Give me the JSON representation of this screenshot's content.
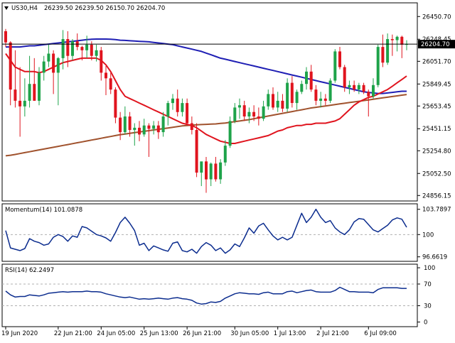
{
  "header": {
    "symbol": "US30,H4",
    "ohlc": "26239.50 26239.50 26150.70 26204.70"
  },
  "colors": {
    "bull": "#1ea34a",
    "bear": "#e0141e",
    "ma_fast": "#e0141e",
    "ma_mid": "#1f1fb4",
    "ma_slow": "#a0522d",
    "osc_line": "#0b2c8e",
    "grid": "#b0b0b0",
    "price_tag_bg": "#000000",
    "price_tag_fg": "#ffffff"
  },
  "chart_data": [
    {
      "type": "candlestick",
      "name": "US30,H4",
      "current_price": "26204.70",
      "y_ticks": [
        "26450.70",
        "26248.45",
        "26051.70",
        "25849.45",
        "25653.45",
        "25451.15",
        "25254.80",
        "25052.50",
        "24856.15"
      ],
      "y_tick_values": [
        26450.7,
        26248.45,
        26051.7,
        25849.45,
        25653.45,
        25451.15,
        25254.8,
        25052.5,
        24856.15
      ],
      "ylim": [
        24820,
        26560
      ],
      "candles": [
        [
          26320,
          26340,
          26180,
          26220
        ],
        [
          26220,
          26230,
          25660,
          25800
        ],
        [
          25800,
          26150,
          25640,
          25700
        ],
        [
          25700,
          26000,
          25380,
          25650
        ],
        [
          25650,
          25900,
          25560,
          25700
        ],
        [
          25700,
          26100,
          25640,
          25850
        ],
        [
          25850,
          26080,
          25700,
          25700
        ],
        [
          25700,
          26000,
          25660,
          25950
        ],
        [
          25950,
          26100,
          25880,
          26050
        ],
        [
          26050,
          26200,
          26000,
          26120
        ],
        [
          26120,
          26150,
          25760,
          25950
        ],
        [
          25950,
          26090,
          25660,
          26080
        ],
        [
          26080,
          26330,
          25980,
          26250
        ],
        [
          26250,
          26320,
          26000,
          26100
        ],
        [
          26100,
          26250,
          26060,
          26230
        ],
        [
          26230,
          26300,
          26150,
          26180
        ],
        [
          26180,
          26190,
          26060,
          26150
        ],
        [
          26150,
          26280,
          26080,
          26200
        ],
        [
          26200,
          26230,
          26060,
          26100
        ],
        [
          26100,
          26200,
          26050,
          26150
        ],
        [
          26150,
          26180,
          25880,
          25950
        ],
        [
          25950,
          26010,
          25750,
          25900
        ],
        [
          25900,
          25950,
          25760,
          25800
        ],
        [
          25800,
          25820,
          25500,
          25550
        ],
        [
          25550,
          25600,
          25350,
          25420
        ],
        [
          25420,
          25650,
          25400,
          25560
        ],
        [
          25560,
          25600,
          25380,
          25440
        ],
        [
          25440,
          25500,
          25300,
          25460
        ],
        [
          25460,
          25520,
          25340,
          25400
        ],
        [
          25400,
          25540,
          25380,
          25480
        ],
        [
          25480,
          25500,
          25200,
          25450
        ],
        [
          25450,
          25520,
          25400,
          25480
        ],
        [
          25480,
          25520,
          25360,
          25420
        ],
        [
          25420,
          25600,
          25380,
          25560
        ],
        [
          25560,
          25700,
          25480,
          25680
        ],
        [
          25680,
          25760,
          25620,
          25720
        ],
        [
          25720,
          25800,
          25560,
          25600
        ],
        [
          25600,
          25720,
          25560,
          25680
        ],
        [
          25680,
          25720,
          25480,
          25500
        ],
        [
          25500,
          25560,
          25400,
          25440
        ],
        [
          25440,
          25500,
          25020,
          25060
        ],
        [
          25060,
          25150,
          24940,
          25160
        ],
        [
          25160,
          25200,
          24880,
          25000
        ],
        [
          25000,
          25150,
          24940,
          25140
        ],
        [
          25140,
          25200,
          24980,
          25000
        ],
        [
          25000,
          25180,
          24960,
          25150
        ],
        [
          25150,
          25350,
          25120,
          25300
        ],
        [
          25300,
          25560,
          25280,
          25520
        ],
        [
          25520,
          25680,
          25500,
          25640
        ],
        [
          25640,
          25720,
          25540,
          25660
        ],
        [
          25660,
          25700,
          25520,
          25560
        ],
        [
          25560,
          25640,
          25500,
          25600
        ],
        [
          25600,
          25660,
          25520,
          25560
        ],
        [
          25560,
          25640,
          25480,
          25540
        ],
        [
          25540,
          25700,
          25520,
          25650
        ],
        [
          25650,
          25800,
          25620,
          25760
        ],
        [
          25760,
          25820,
          25620,
          25640
        ],
        [
          25640,
          25780,
          25600,
          25700
        ],
        [
          25700,
          25760,
          25600,
          25630
        ],
        [
          25630,
          25900,
          25600,
          25860
        ],
        [
          25860,
          25920,
          25640,
          25680
        ],
        [
          25680,
          25800,
          25620,
          25780
        ],
        [
          25780,
          25880,
          25760,
          25850
        ],
        [
          25850,
          26000,
          25800,
          25960
        ],
        [
          25960,
          26020,
          25780,
          25800
        ],
        [
          25800,
          25840,
          25660,
          25700
        ],
        [
          25700,
          25780,
          25640,
          25720
        ],
        [
          25720,
          25760,
          25660,
          25700
        ],
        [
          25700,
          25900,
          25680,
          25880
        ],
        [
          25880,
          26160,
          25860,
          26140
        ],
        [
          26140,
          26180,
          25980,
          26000
        ],
        [
          26000,
          26020,
          25780,
          25820
        ],
        [
          25820,
          25880,
          25760,
          25840
        ],
        [
          25840,
          25880,
          25780,
          25800
        ],
        [
          25800,
          25860,
          25760,
          25840
        ],
        [
          25840,
          25860,
          25760,
          25780
        ],
        [
          25780,
          25800,
          25560,
          25740
        ],
        [
          25740,
          25900,
          25720,
          25840
        ],
        [
          25840,
          26200,
          25820,
          26180
        ],
        [
          26180,
          26290,
          26000,
          26040
        ],
        [
          26040,
          26300,
          26020,
          26250
        ],
        [
          26250,
          26290,
          26100,
          26240
        ],
        [
          26240,
          26280,
          26140,
          26270
        ],
        [
          26270,
          26280,
          26080,
          26200
        ],
        [
          26200,
          26240,
          26150,
          26205
        ]
      ],
      "ma_fast": [
        26120,
        26060,
        26000,
        25980,
        25960,
        25960,
        25960,
        25950,
        25960,
        25980,
        26000,
        26020,
        26040,
        26050,
        26060,
        26070,
        26080,
        26080,
        26080,
        26080,
        26060,
        26020,
        25960,
        25880,
        25800,
        25740,
        25720,
        25700,
        25680,
        25660,
        25640,
        25620,
        25600,
        25580,
        25560,
        25540,
        25520,
        25500,
        25490,
        25480,
        25460,
        25430,
        25400,
        25380,
        25360,
        25340,
        25330,
        25320,
        25320,
        25330,
        25340,
        25350,
        25360,
        25370,
        25380,
        25390,
        25410,
        25430,
        25440,
        25460,
        25470,
        25480,
        25480,
        25490,
        25490,
        25500,
        25500,
        25500,
        25510,
        25520,
        25540,
        25580,
        25620,
        25660,
        25690,
        25710,
        25730,
        25740,
        25760,
        25780,
        25800,
        25830,
        25860,
        25890,
        25920
      ],
      "ma_mid": [
        26180,
        26180,
        26180,
        26180,
        26185,
        26190,
        26190,
        26195,
        26200,
        26205,
        26210,
        26215,
        26220,
        26225,
        26230,
        26235,
        26240,
        26245,
        26248,
        26250,
        26250,
        26250,
        26248,
        26245,
        26240,
        26238,
        26235,
        26232,
        26230,
        26228,
        26225,
        26220,
        26215,
        26210,
        26205,
        26200,
        26190,
        26180,
        26170,
        26160,
        26150,
        26140,
        26125,
        26110,
        26095,
        26080,
        26070,
        26060,
        26050,
        26040,
        26030,
        26020,
        26010,
        26000,
        25990,
        25980,
        25970,
        25960,
        25950,
        25940,
        25930,
        25920,
        25910,
        25900,
        25890,
        25880,
        25870,
        25860,
        25850,
        25840,
        25830,
        25820,
        25810,
        25800,
        25790,
        25780,
        25775,
        25770,
        25765,
        25765,
        25770,
        25775,
        25780,
        25785,
        25785
      ],
      "ma_slow": [
        25210,
        25215,
        25222,
        25230,
        25238,
        25246,
        25254,
        25262,
        25270,
        25278,
        25286,
        25294,
        25302,
        25310,
        25318,
        25326,
        25334,
        25342,
        25350,
        25358,
        25366,
        25374,
        25382,
        25390,
        25398,
        25404,
        25410,
        25416,
        25422,
        25428,
        25434,
        25440,
        25446,
        25452,
        25458,
        25464,
        25470,
        25476,
        25480,
        25484,
        25486,
        25488,
        25490,
        25492,
        25494,
        25498,
        25502,
        25508,
        25514,
        25520,
        25526,
        25532,
        25540,
        25548,
        25556,
        25564,
        25572,
        25580,
        25588,
        25596,
        25604,
        25612,
        25620,
        25628,
        25636,
        25642,
        25648,
        25654,
        25660,
        25666,
        25672,
        25678,
        25684,
        25690,
        25696,
        25702,
        25708,
        25714,
        25720,
        25726,
        25732,
        25738,
        25744,
        25750,
        25756
      ]
    },
    {
      "type": "line",
      "name": "Momentum(14)",
      "title": "Momentum(14) 101.0878",
      "y_ticks": [
        "103.7897",
        "100",
        "96.6619"
      ],
      "y_tick_values": [
        103.7897,
        100,
        96.6619
      ],
      "ylim": [
        96.2,
        104.4
      ],
      "reference_level": 100,
      "values": [
        100.6,
        98.0,
        97.8,
        97.6,
        97.9,
        99.4,
        99.0,
        98.8,
        98.4,
        98.6,
        99.6,
        100.0,
        99.7,
        99.0,
        99.8,
        99.6,
        101.2,
        101.0,
        100.5,
        100.0,
        99.8,
        99.5,
        99.0,
        100.3,
        101.8,
        102.6,
        101.7,
        100.6,
        98.4,
        98.7,
        97.6,
        98.3,
        98.0,
        97.7,
        97.5,
        98.7,
        98.9,
        97.6,
        97.4,
        97.8,
        97.2,
        98.2,
        98.8,
        98.4,
        97.6,
        98.0,
        97.2,
        97.7,
        98.6,
        98.2,
        99.5,
        101.0,
        100.2,
        101.3,
        101.7,
        100.7,
        99.8,
        99.2,
        99.6,
        99.2,
        99.6,
        101.4,
        103.2,
        101.8,
        102.6,
        103.8,
        102.6,
        101.8,
        102.1,
        101.0,
        100.4,
        100.0,
        100.7,
        101.9,
        102.4,
        102.3,
        101.5,
        100.7,
        100.4,
        100.9,
        101.4,
        102.2,
        102.5,
        102.3,
        101.1
      ]
    },
    {
      "type": "line",
      "name": "RSI(14)",
      "title": "RSI(14) 62.2497",
      "y_ticks": [
        "100",
        "70",
        "30",
        "0"
      ],
      "y_tick_values": [
        100,
        70,
        30,
        0
      ],
      "ylim": [
        -6,
        104
      ],
      "levels": [
        70,
        30
      ],
      "values": [
        57,
        50,
        46,
        47,
        47,
        50,
        49,
        48,
        50,
        53,
        54,
        55,
        56,
        55,
        56,
        56,
        56,
        57,
        56,
        56,
        55,
        52,
        50,
        48,
        46,
        45,
        46,
        44,
        42,
        43,
        42,
        43,
        44,
        43,
        42,
        44,
        45,
        43,
        42,
        40,
        35,
        33,
        34,
        37,
        36,
        38,
        44,
        48,
        52,
        54,
        53,
        52,
        52,
        51,
        54,
        55,
        52,
        52,
        52,
        56,
        57,
        54,
        56,
        58,
        59,
        56,
        55,
        55,
        55,
        58,
        64,
        60,
        56,
        56,
        55,
        55,
        55,
        54,
        60,
        63,
        63,
        63,
        63,
        62,
        62
      ]
    }
  ],
  "x_axis": {
    "labels": [
      "19 Jun 2020",
      "22 Jun 21:00",
      "24 Jun 05:00",
      "25 Jun 13:00",
      "26 Jun 21:00",
      "30 Jun 05:00",
      "1 Jul 13:00",
      "2 Jul 21:00",
      "6 Jul 09:00"
    ],
    "label_candle_index": [
      0,
      11,
      20,
      29,
      38,
      48,
      57,
      66,
      76
    ]
  }
}
